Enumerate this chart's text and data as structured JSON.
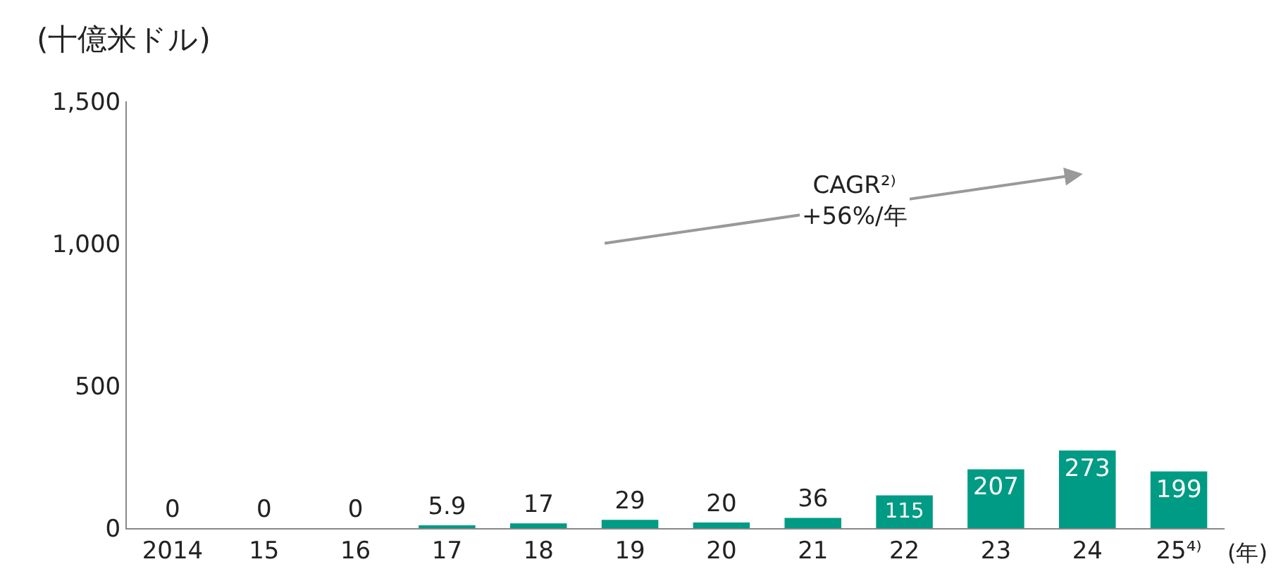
{
  "chart_data": {
    "type": "bar",
    "ylabel": "(十億米ドル)",
    "xlabel": "(年)",
    "categories": [
      "2014",
      "15",
      "16",
      "17",
      "18",
      "19",
      "20",
      "21",
      "22",
      "23",
      "24",
      "25⁴⁾"
    ],
    "values": [
      0,
      0,
      0,
      5.9,
      17,
      29,
      20,
      36,
      115,
      207,
      273,
      199
    ],
    "color": "#009b84",
    "ylim": [
      0,
      1500
    ],
    "yticks": [
      0,
      500,
      {
        "value": 1000,
        "label": "1,000"
      },
      {
        "value": 1500,
        "label": "1,500"
      }
    ],
    "data_labels": true,
    "annotations": [
      "CAGR²⁾\n+56%/年"
    ]
  }
}
